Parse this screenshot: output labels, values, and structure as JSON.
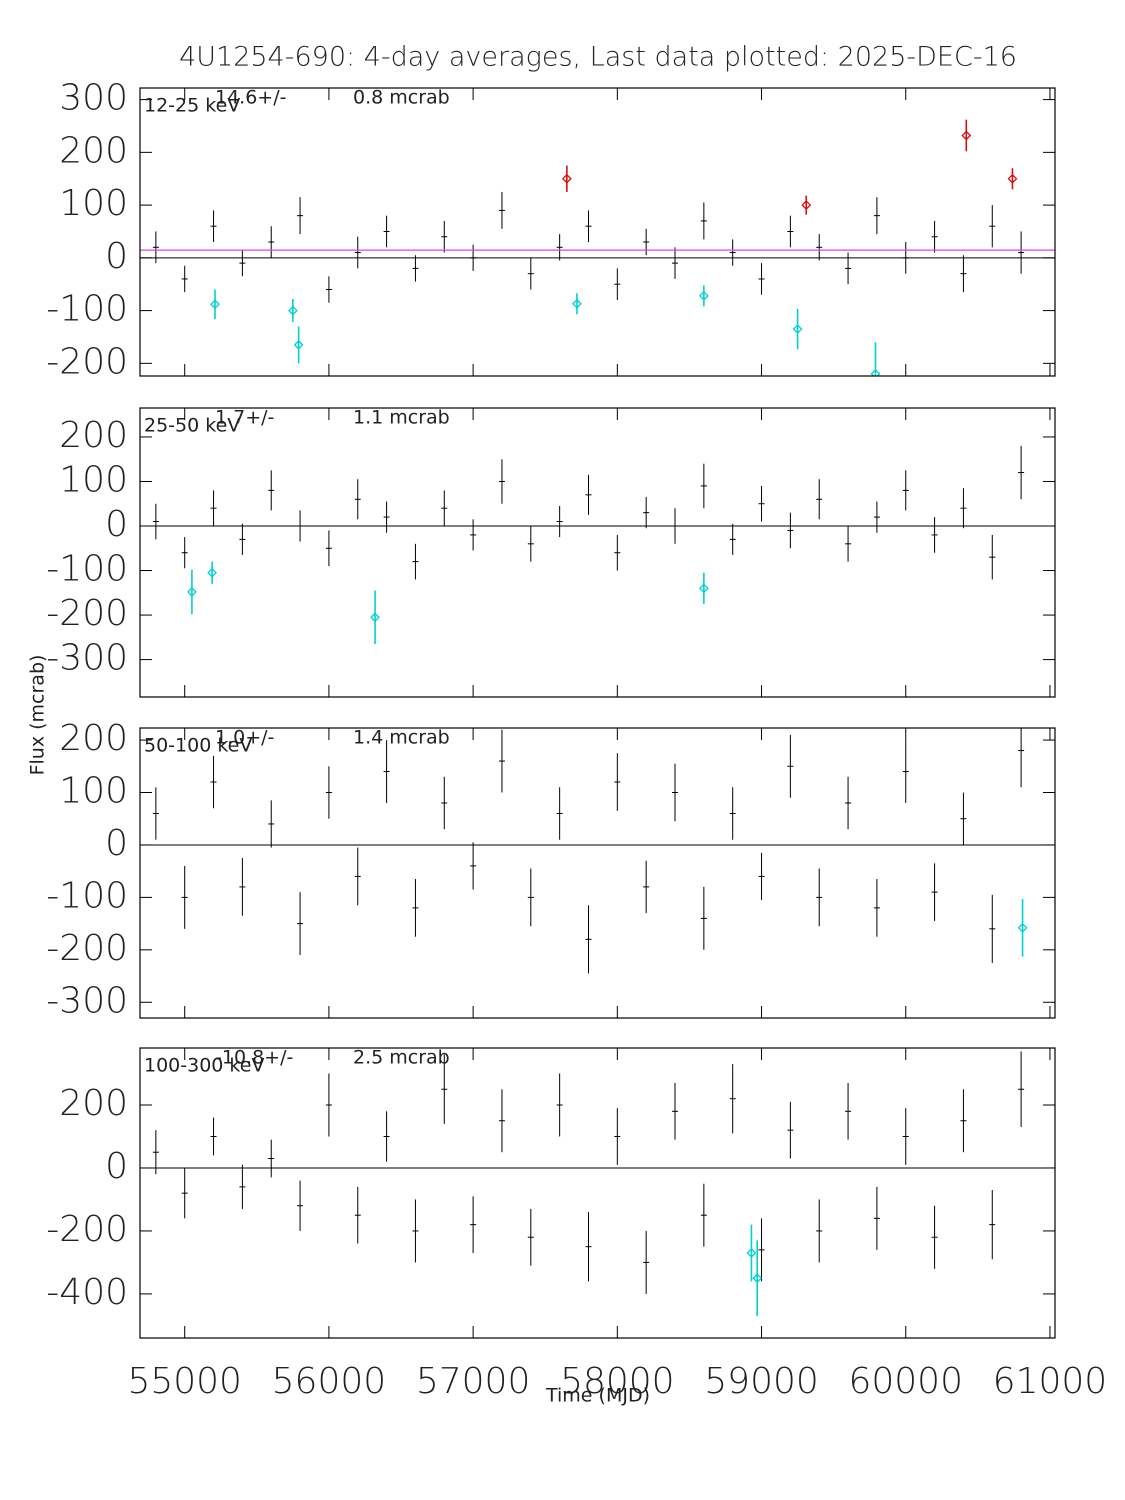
{
  "chart_data": [
    {
      "type": "errorbar",
      "title": "4U1254-690:  4-day averages,  Last data plotted: 2025-DEC-16",
      "label": "12-25 keV",
      "mean_label": "14.6+/-",
      "error_label": "0.8 mcrab",
      "mean": 14.6,
      "mean_color": "#e040e0",
      "xlim": [
        54690,
        61035
      ],
      "ylim": [
        -224,
        322
      ],
      "yticks": [
        -200,
        -100,
        0,
        100,
        200,
        300
      ],
      "series": [
        {
          "color": "#000000",
          "x": [
            54800,
            55000,
            55200,
            55400,
            55600,
            55800,
            56000,
            56200,
            56400,
            56600,
            56800,
            57000,
            57200,
            57400,
            57600,
            57800,
            58000,
            58200,
            58400,
            58600,
            58800,
            59000,
            59200,
            59400,
            59600,
            59800,
            60000,
            60200,
            60400,
            60600,
            60800
          ],
          "values": [
            20,
            -40,
            60,
            -10,
            30,
            80,
            -60,
            10,
            50,
            -20,
            40,
            0,
            90,
            -30,
            20,
            60,
            -50,
            30,
            -10,
            70,
            10,
            -40,
            50,
            20,
            -20,
            80,
            0,
            40,
            -30,
            60,
            10
          ],
          "errors": [
            30,
            25,
            30,
            25,
            30,
            35,
            25,
            30,
            30,
            25,
            30,
            25,
            35,
            30,
            25,
            30,
            30,
            25,
            30,
            35,
            25,
            30,
            30,
            25,
            30,
            35,
            30,
            30,
            35,
            40,
            40
          ]
        },
        {
          "color": "#d01010",
          "x": [
            57650,
            59310,
            60420,
            60740
          ],
          "values": [
            150,
            100,
            232,
            150
          ],
          "errors": [
            25,
            18,
            30,
            20
          ]
        },
        {
          "color": "#00d0d0",
          "x": [
            55210,
            55750,
            55790,
            57720,
            58600,
            59250,
            59790
          ],
          "values": [
            -88,
            -100,
            -165,
            -87,
            -72,
            -135,
            -220
          ],
          "errors": [
            28,
            22,
            35,
            20,
            20,
            38,
            60
          ]
        }
      ]
    },
    {
      "type": "errorbar",
      "label": "25-50 keV",
      "mean_label": "1.7+/-",
      "error_label": "1.1 mcrab",
      "ylabel": "Flux (mcrab)",
      "xlim": [
        54690,
        61035
      ],
      "ylim": [
        -384,
        265
      ],
      "yticks": [
        -300,
        -200,
        -100,
        0,
        100,
        200
      ],
      "series": [
        {
          "color": "#000000",
          "x": [
            54800,
            55000,
            55200,
            55400,
            55600,
            55800,
            56000,
            56200,
            56400,
            56600,
            56800,
            57000,
            57200,
            57400,
            57600,
            57800,
            58000,
            58200,
            58400,
            58600,
            58800,
            59000,
            59200,
            59400,
            59600,
            59800,
            60000,
            60200,
            60400,
            60600,
            60800
          ],
          "values": [
            10,
            -60,
            40,
            -30,
            80,
            0,
            -50,
            60,
            20,
            -80,
            40,
            -20,
            100,
            -40,
            10,
            70,
            -60,
            30,
            0,
            90,
            -30,
            50,
            -10,
            60,
            -40,
            20,
            80,
            -20,
            40,
            -70,
            120
          ],
          "errors": [
            40,
            35,
            40,
            35,
            45,
            35,
            40,
            45,
            35,
            40,
            40,
            35,
            50,
            40,
            35,
            45,
            40,
            35,
            40,
            50,
            35,
            40,
            40,
            45,
            40,
            35,
            45,
            40,
            45,
            50,
            60
          ]
        },
        {
          "color": "#00d0d0",
          "x": [
            55050,
            55190,
            56320,
            58600
          ],
          "values": [
            -148,
            -105,
            -205,
            -140
          ],
          "errors": [
            50,
            25,
            60,
            35
          ]
        }
      ]
    },
    {
      "type": "errorbar",
      "label": "50-100 keV",
      "mean_label": "1.0+/-",
      "error_label": "1.4 mcrab",
      "xlim": [
        54690,
        61035
      ],
      "ylim": [
        -330,
        223
      ],
      "yticks": [
        -300,
        -200,
        -100,
        0,
        100,
        200
      ],
      "series": [
        {
          "color": "#000000",
          "x": [
            54800,
            55000,
            55200,
            55400,
            55600,
            55800,
            56000,
            56200,
            56400,
            56600,
            56800,
            57000,
            57200,
            57400,
            57600,
            57800,
            58000,
            58200,
            58400,
            58600,
            58800,
            59000,
            59200,
            59400,
            59600,
            59800,
            60000,
            60200,
            60400,
            60600,
            60800
          ],
          "values": [
            60,
            -100,
            120,
            -80,
            40,
            -150,
            100,
            -60,
            140,
            -120,
            80,
            -40,
            160,
            -100,
            60,
            -180,
            120,
            -80,
            100,
            -140,
            60,
            -60,
            150,
            -100,
            80,
            -120,
            140,
            -90,
            50,
            -160,
            180
          ],
          "errors": [
            50,
            60,
            50,
            55,
            45,
            60,
            50,
            55,
            60,
            55,
            50,
            45,
            60,
            55,
            50,
            65,
            55,
            50,
            55,
            60,
            50,
            45,
            60,
            55,
            50,
            55,
            60,
            55,
            50,
            65,
            70
          ]
        },
        {
          "color": "#00d0d0",
          "x": [
            60810
          ],
          "values": [
            -158
          ],
          "errors": [
            55
          ]
        }
      ]
    },
    {
      "type": "errorbar",
      "label": "100-300 keV",
      "mean_label": "-10.8+/-",
      "error_label": "2.5 mcrab",
      "xlabel": "Time (MJD)",
      "xlim": [
        54690,
        61035
      ],
      "ylim": [
        -540,
        381
      ],
      "yticks": [
        -400,
        -200,
        0,
        200
      ],
      "xticks": [
        55000,
        56000,
        57000,
        58000,
        59000,
        60000,
        61000
      ],
      "series": [
        {
          "color": "#000000",
          "x": [
            54800,
            55000,
            55200,
            55400,
            55600,
            55800,
            56000,
            56200,
            56400,
            56600,
            56800,
            57000,
            57200,
            57400,
            57600,
            57800,
            58000,
            58200,
            58400,
            58600,
            58800,
            59000,
            59200,
            59400,
            59600,
            59800,
            60000,
            60200,
            60400,
            60600,
            60800
          ],
          "values": [
            50,
            -80,
            100,
            -60,
            30,
            -120,
            200,
            -150,
            100,
            -200,
            250,
            -180,
            150,
            -220,
            200,
            -250,
            100,
            -300,
            180,
            -150,
            220,
            -260,
            120,
            -200,
            180,
            -160,
            100,
            -220,
            150,
            -180,
            250
          ],
          "errors": [
            70,
            80,
            60,
            70,
            60,
            80,
            100,
            90,
            80,
            100,
            110,
            90,
            100,
            90,
            100,
            110,
            90,
            100,
            90,
            100,
            110,
            100,
            90,
            100,
            90,
            100,
            90,
            100,
            100,
            110,
            120
          ]
        },
        {
          "color": "#00d0d0",
          "x": [
            58930,
            58970
          ],
          "values": [
            -270,
            -350
          ],
          "errors": [
            90,
            120
          ]
        }
      ]
    }
  ]
}
